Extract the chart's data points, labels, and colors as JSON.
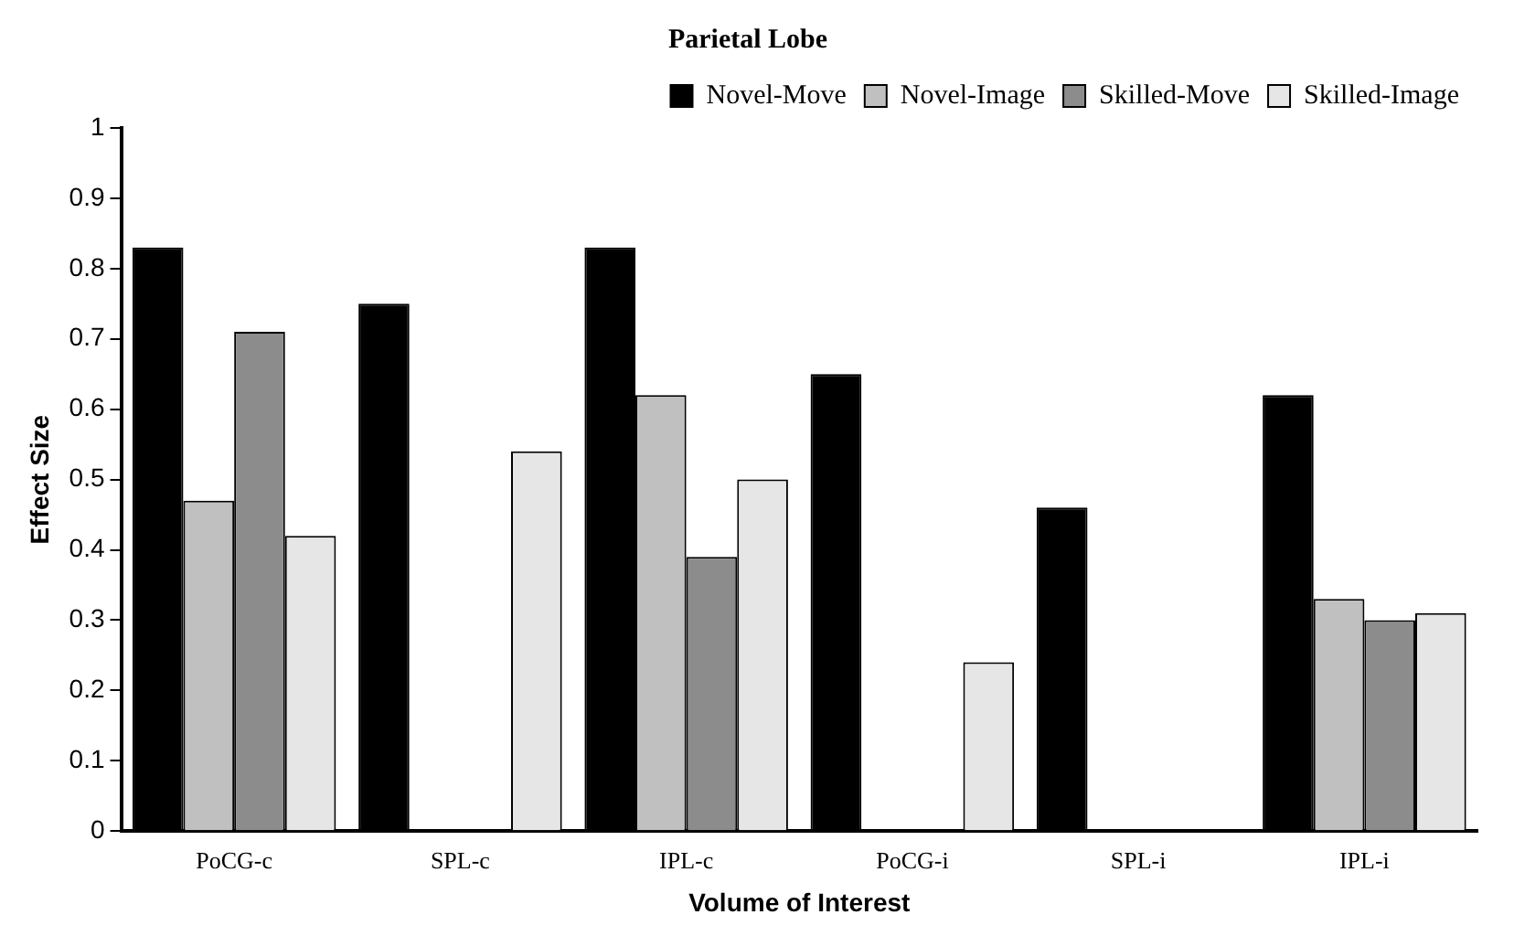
{
  "chart_data": {
    "type": "bar",
    "title": "Parietal Lobe",
    "xlabel": "Volume of Interest",
    "ylabel": "Effect Size",
    "categories": [
      "PoCG-c",
      "SPL-c",
      "IPL-c",
      "PoCG-i",
      "SPL-i",
      "IPL-i"
    ],
    "series": [
      {
        "name": "Novel-Move",
        "color": "#000000",
        "values": [
          0.83,
          0.75,
          0.83,
          0.65,
          0.46,
          0.62
        ]
      },
      {
        "name": "Novel-Image",
        "color": "#c0c0c0",
        "values": [
          0.47,
          0,
          0.62,
          0,
          0,
          0.33
        ]
      },
      {
        "name": "Skilled-Move",
        "color": "#8c8c8c",
        "values": [
          0.71,
          0,
          0.39,
          0,
          0,
          0.3
        ]
      },
      {
        "name": "Skilled-Image",
        "color": "#e6e6e6",
        "values": [
          0.42,
          0.54,
          0.5,
          0.24,
          0,
          0.31
        ]
      }
    ],
    "ylim": [
      0,
      1
    ],
    "yticks": [
      0,
      0.1,
      0.2,
      0.3,
      0.4,
      0.5,
      0.6,
      0.7,
      0.8,
      0.9,
      1
    ],
    "grid": false,
    "legend": "top right"
  }
}
